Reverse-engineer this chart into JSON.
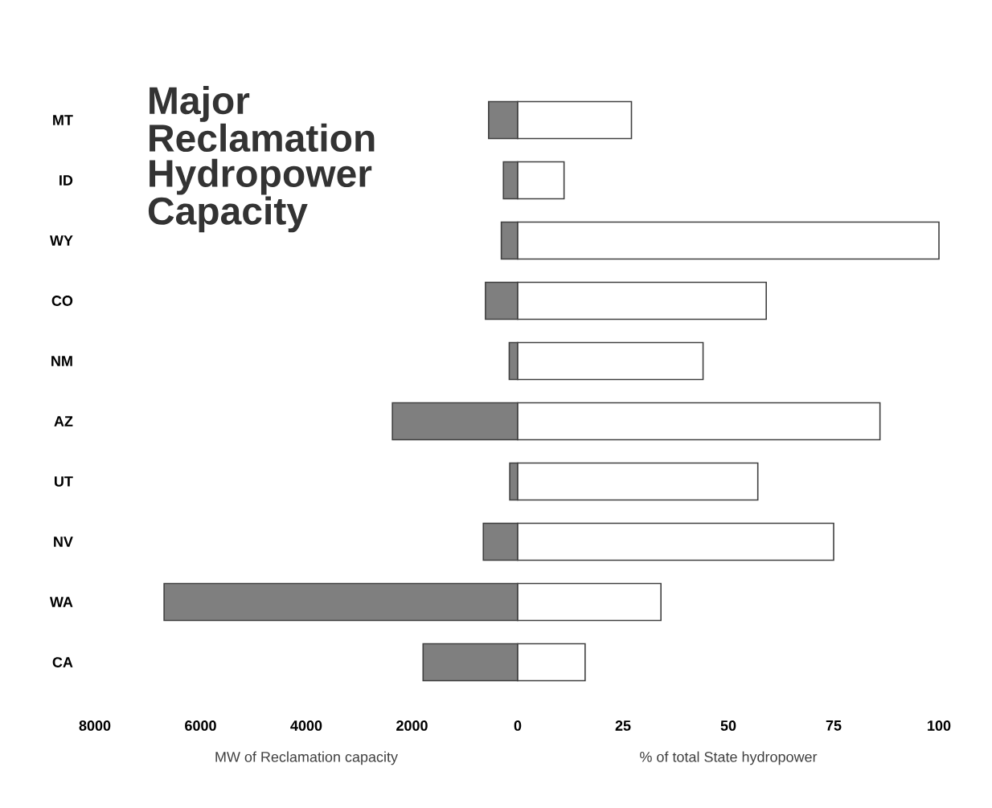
{
  "chart_data": [
    {
      "type": "bar",
      "orientation": "horizontal",
      "title": "Major Reclamation Hydropower Capacity",
      "xlabel": "MW of Reclamation capacity",
      "categories": [
        "MT",
        "ID",
        "WY",
        "CO",
        "NM",
        "AZ",
        "UT",
        "NV",
        "WA",
        "CA"
      ],
      "values": [
        550,
        270,
        310,
        610,
        160,
        2370,
        150,
        650,
        6690,
        1790
      ],
      "color": "#7f7f7f",
      "xlim": [
        8000,
        0
      ],
      "xticks": [
        8000,
        6000,
        4000,
        2000,
        0
      ]
    },
    {
      "type": "bar",
      "orientation": "horizontal",
      "xlabel": "% of total State hydropower",
      "categories": [
        null,
        null,
        null,
        null,
        null,
        null,
        null,
        null,
        null,
        null
      ],
      "values": [
        27,
        11,
        100,
        59,
        44,
        86,
        57,
        75,
        34,
        16
      ],
      "color": "#ffffff",
      "xlim": [
        0,
        100
      ],
      "xticks": [
        25,
        50,
        75,
        100
      ],
      "tick_labels": "x"
    }
  ]
}
